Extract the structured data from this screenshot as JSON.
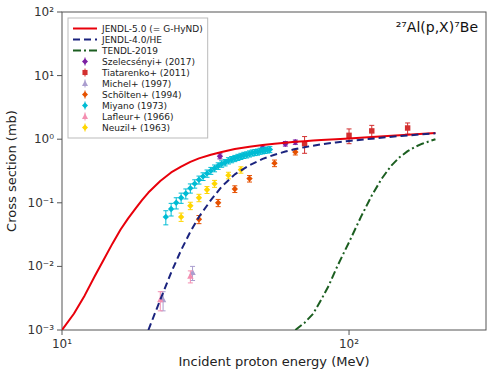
{
  "chart_data": {
    "type": "line",
    "title": "²⁷Al(p,X)⁷Be",
    "xlabel": "Incident proton energy (MeV)",
    "ylabel": "Cross section (mb)",
    "log": true,
    "grid": false,
    "legend": "upper left",
    "xlim": [
      10,
      300
    ],
    "ylim": [
      0.001,
      100
    ],
    "xticks": [
      {
        "value": 10,
        "label": "10¹"
      },
      {
        "value": 100,
        "label": "10²"
      }
    ],
    "yticks": [
      {
        "value": 0.001,
        "label": "10⁻³"
      },
      {
        "value": 0.01,
        "label": "10⁻²"
      },
      {
        "value": 0.1,
        "label": "10⁻¹"
      },
      {
        "value": 1,
        "label": "10⁰"
      },
      {
        "value": 10,
        "label": "10¹"
      },
      {
        "value": 100,
        "label": "10²"
      }
    ],
    "series": [
      {
        "name": "JENDL-5.0 (= G-HyND)",
        "type": "line",
        "line_style": "solid",
        "color": "#e8000b",
        "x": [
          10.0,
          11.0,
          12.0,
          13.0,
          14.0,
          15.0,
          16.0,
          17.0,
          18.0,
          19.0,
          20.0,
          22.0,
          24.0,
          26.0,
          28.0,
          30.0,
          33.0,
          36.0,
          40.0,
          45.0,
          50.0,
          55.0,
          60.0,
          65.0,
          70.0,
          75.0,
          80.0,
          90.0,
          100.0,
          120.0,
          150.0,
          200.0
        ],
        "values": [
          0.001,
          0.0018,
          0.0035,
          0.007,
          0.013,
          0.023,
          0.038,
          0.057,
          0.08,
          0.11,
          0.145,
          0.22,
          0.3,
          0.37,
          0.44,
          0.5,
          0.57,
          0.63,
          0.7,
          0.76,
          0.81,
          0.85,
          0.88,
          0.91,
          0.93,
          0.95,
          0.97,
          1.0,
          1.03,
          1.08,
          1.15,
          1.25
        ]
      },
      {
        "name": "JENDL-4.0/HE",
        "type": "line",
        "line_style": "dashed",
        "color": "#1a237e",
        "x": [
          20.0,
          22.0,
          24.0,
          26.0,
          28.0,
          30.0,
          33.0,
          36.0,
          40.0,
          45.0,
          50.0,
          55.0,
          60.0,
          65.0,
          70.0,
          75.0,
          80.0,
          90.0,
          100.0,
          120.0,
          150.0,
          200.0
        ],
        "values": [
          0.001,
          0.003,
          0.008,
          0.018,
          0.035,
          0.06,
          0.11,
          0.18,
          0.28,
          0.39,
          0.49,
          0.57,
          0.64,
          0.7,
          0.75,
          0.79,
          0.83,
          0.89,
          0.94,
          1.02,
          1.12,
          1.24
        ]
      },
      {
        "name": "TENDL-2019",
        "type": "line",
        "line_style": "dashdot",
        "color": "#1b5e20",
        "x": [
          65.0,
          70.0,
          75.0,
          80.0,
          85.0,
          90.0,
          95.0,
          100.0,
          110.0,
          120.0,
          130.0,
          140.0,
          150.0,
          160.0,
          170.0,
          180.0,
          200.0
        ],
        "values": [
          0.001,
          0.0013,
          0.0018,
          0.003,
          0.005,
          0.009,
          0.015,
          0.024,
          0.06,
          0.13,
          0.24,
          0.38,
          0.52,
          0.65,
          0.76,
          0.85,
          1.0
        ]
      },
      {
        "name": "Szelecsényi+ (2017)",
        "type": "scatter",
        "marker": "diamond",
        "color": "#7b1fa2",
        "x": [
          35.5,
          50.0,
          60.0,
          65.0
        ],
        "values": [
          0.54,
          0.72,
          0.85,
          0.9
        ],
        "yerr": [
          0.05,
          0.06,
          0.07,
          0.07
        ]
      },
      {
        "name": "Tiatarenko+ (2011)",
        "type": "scatter",
        "marker": "square",
        "color": "#d32f2f",
        "x": [
          70.0,
          100.0,
          120.0,
          160.0
        ],
        "values": [
          0.85,
          1.15,
          1.35,
          1.5
        ],
        "yerr_lo": [
          0.25,
          0.3,
          0.3,
          0.3
        ],
        "yerr_hi": [
          0.25,
          0.3,
          0.3,
          0.3
        ]
      },
      {
        "name": "Michel+ (1997)",
        "type": "scatter",
        "marker": "triangle-up",
        "color": "#ab9ecf",
        "x": [
          22.5,
          28.5
        ],
        "values": [
          0.003,
          0.008
        ],
        "yerr": [
          0.001,
          0.002
        ]
      },
      {
        "name": "Schölten+ (1994)",
        "type": "scatter",
        "marker": "diamond",
        "color": "#e65100",
        "x": [
          30.0,
          35.0,
          40.0,
          45.0,
          55.0,
          65.0
        ],
        "values": [
          0.055,
          0.1,
          0.165,
          0.24,
          0.42,
          0.63
        ],
        "yerr": [
          0.008,
          0.013,
          0.02,
          0.028,
          0.05,
          0.065
        ]
      },
      {
        "name": "Miyano (1973)",
        "type": "scatter",
        "marker": "diamond",
        "color": "#00bcd4",
        "x": [
          23.0,
          24.0,
          25.0,
          26.0,
          27.0,
          28.0,
          29.0,
          30.0,
          31.0,
          32.0,
          33.0,
          34.0,
          35.0,
          36.0,
          37.0,
          38.0,
          39.0,
          40.0,
          41.0,
          42.0,
          43.0,
          44.0,
          45.0,
          46.0,
          47.0,
          48.0,
          49.0,
          50.0,
          51.0,
          52.0,
          53.0
        ],
        "values": [
          0.06,
          0.08,
          0.1,
          0.12,
          0.14,
          0.17,
          0.2,
          0.23,
          0.26,
          0.29,
          0.32,
          0.35,
          0.38,
          0.41,
          0.43,
          0.46,
          0.48,
          0.5,
          0.52,
          0.54,
          0.56,
          0.57,
          0.59,
          0.61,
          0.62,
          0.63,
          0.65,
          0.66,
          0.67,
          0.68,
          0.69
        ],
        "yerr": [
          0.015,
          0.018,
          0.02,
          0.022,
          0.025,
          0.028,
          0.03,
          0.033,
          0.036,
          0.038,
          0.04,
          0.043,
          0.045,
          0.048,
          0.05,
          0.052,
          0.054,
          0.056,
          0.058,
          0.06,
          0.062,
          0.063,
          0.065,
          0.067,
          0.068,
          0.069,
          0.071,
          0.072,
          0.073,
          0.074,
          0.075
        ]
      },
      {
        "name": "Lafleur+ (1966)",
        "type": "scatter",
        "marker": "triangle-up",
        "color": "#f48fb1",
        "x": [
          22.0,
          28.0
        ],
        "values": [
          0.003,
          0.007
        ],
        "yerr": [
          0.001,
          0.0015
        ]
      },
      {
        "name": "Neuzil+ (1963)",
        "type": "scatter",
        "marker": "diamond",
        "color": "#ffd600",
        "x": [
          26.0,
          28.0,
          30.0,
          32.0,
          34.0,
          38.0,
          42.0
        ],
        "values": [
          0.06,
          0.09,
          0.12,
          0.16,
          0.2,
          0.27,
          0.33
        ],
        "yerr": [
          0.009,
          0.012,
          0.016,
          0.02,
          0.025,
          0.032,
          0.038
        ]
      }
    ]
  }
}
